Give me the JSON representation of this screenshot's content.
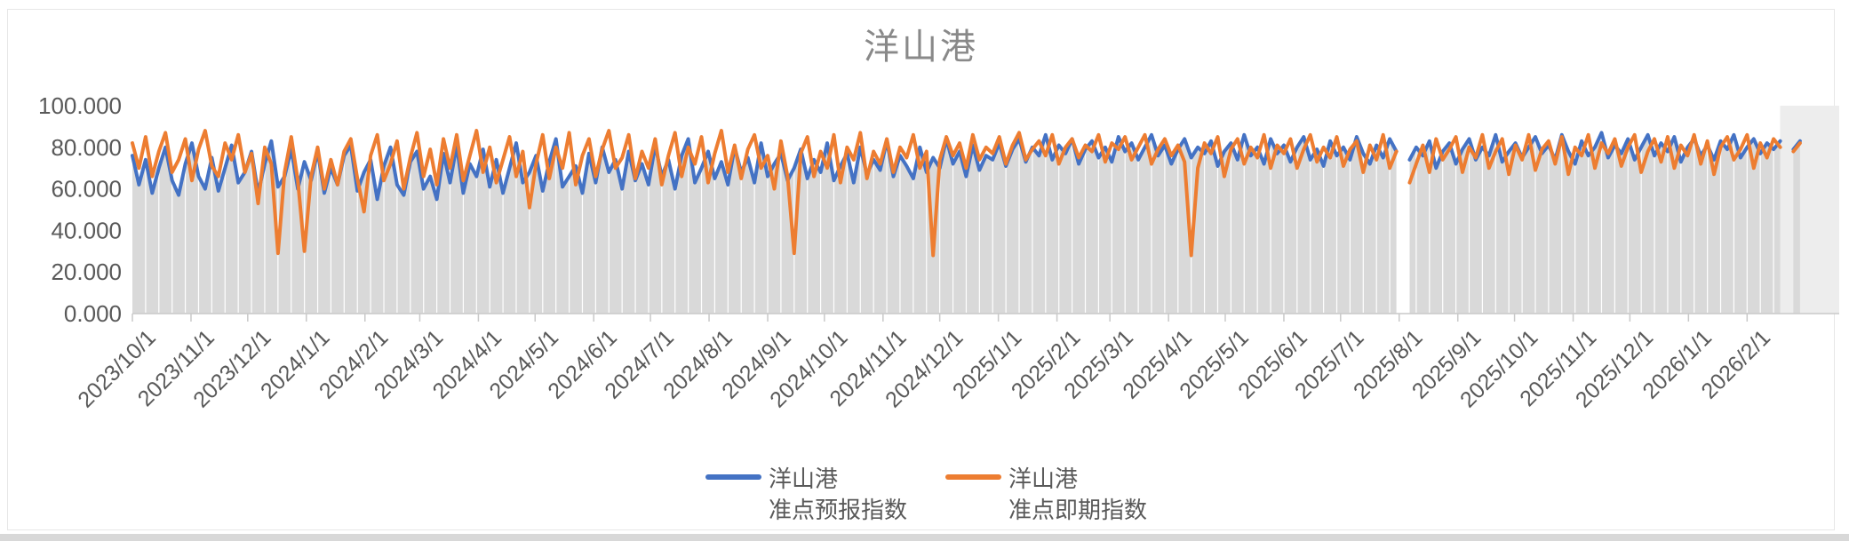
{
  "chart_data": {
    "type": "line",
    "title": "洋山港",
    "title_color": "#898989",
    "xlabel": "",
    "ylabel": "",
    "ylim": [
      0,
      100
    ],
    "y_tick_labels": [
      "0.000",
      "20.000",
      "40.000",
      "60.000",
      "80.000",
      "100.000"
    ],
    "x_start_date": "2023/10/1",
    "sample_interval_days": 3.5,
    "x_tick_labels": [
      "2023/10/1",
      "2023/11/1",
      "2023/12/1",
      "2024/1/1",
      "2024/2/1",
      "2024/3/1",
      "2024/4/1",
      "2024/5/1",
      "2024/6/1",
      "2024/7/1",
      "2024/8/1",
      "2024/9/1",
      "2024/10/1",
      "2024/11/1",
      "2024/12/1",
      "2025/1/1",
      "2025/2/1",
      "2025/3/1",
      "2025/4/1",
      "2025/5/1",
      "2025/6/1",
      "2025/7/1",
      "2025/8/1",
      "2025/9/1",
      "2025/10/1",
      "2025/11/1",
      "2025/12/1",
      "2026/1/1",
      "2026/2/1"
    ],
    "grid": "weekly vertical white gridlines over gray area fill",
    "legend_position": "bottom",
    "axis_label_color": "#595959",
    "axis_line_color": "#c9c9c9",
    "area_fill_color": "#d9d9d9",
    "future_strip_color": "#ededed",
    "series": [
      {
        "name": "洋山港准点预报指数",
        "legend_lines": [
          "洋山港",
          "准点预报指数"
        ],
        "color": "#4472C4",
        "area_under": true,
        "values": [
          76,
          62,
          74,
          58,
          70,
          80,
          64,
          57,
          72,
          82,
          66,
          60,
          75,
          59,
          70,
          81,
          63,
          68,
          78,
          58,
          72,
          83,
          61,
          66,
          79,
          60,
          73,
          64,
          78,
          58,
          70,
          62,
          76,
          81,
          59,
          68,
          74,
          55,
          71,
          80,
          62,
          57,
          73,
          78,
          60,
          66,
          55,
          77,
          63,
          81,
          58,
          72,
          66,
          79,
          61,
          74,
          58,
          70,
          82,
          63,
          68,
          76,
          59,
          73,
          84,
          61,
          66,
          71,
          58,
          77,
          63,
          80,
          68,
          74,
          60,
          78,
          64,
          72,
          62,
          81,
          66,
          74,
          60,
          76,
          84,
          63,
          70,
          78,
          65,
          73,
          62,
          80,
          68,
          75,
          63,
          82,
          66,
          72,
          77,
          64,
          70,
          79,
          65,
          74,
          68,
          82,
          64,
          71,
          77,
          63,
          80,
          67,
          74,
          69,
          83,
          66,
          76,
          71,
          65,
          80,
          68,
          75,
          70,
          84,
          72,
          78,
          66,
          81,
          69,
          76,
          74,
          82,
          71,
          79,
          84,
          73,
          80,
          76,
          86,
          74,
          81,
          77,
          84,
          72,
          79,
          83,
          75,
          80,
          73,
          85,
          78,
          82,
          74,
          80,
          86,
          76,
          81,
          72,
          79,
          84,
          75,
          80,
          77,
          83,
          71,
          78,
          82,
          74,
          86,
          76,
          80,
          72,
          84,
          77,
          81,
          73,
          80,
          85,
          74,
          79,
          71,
          83,
          76,
          80,
          74,
          85,
          77,
          72,
          81,
          75,
          84,
          78,
          null,
          74,
          80,
          76,
          83,
          70,
          78,
          82,
          72,
          79,
          84,
          74,
          80,
          76,
          86,
          73,
          78,
          82,
          75,
          80,
          85,
          77,
          81,
          74,
          86,
          78,
          72,
          83,
          76,
          80,
          87,
          75,
          81,
          77,
          84,
          74,
          80,
          86,
          76,
          82,
          78,
          85,
          73,
          80,
          84,
          76,
          81,
          74,
          83,
          79,
          86,
          75,
          80,
          84,
          77,
          82,
          79,
          83,
          null,
          79,
          83
        ]
      },
      {
        "name": "洋山港准点即期指数",
        "legend_lines": [
          "洋山港",
          "准点即期指数"
        ],
        "color": "#ED7D31",
        "area_under": false,
        "values": [
          82,
          70,
          85,
          66,
          78,
          87,
          68,
          74,
          84,
          64,
          79,
          88,
          71,
          66,
          82,
          74,
          86,
          68,
          77,
          53,
          80,
          72,
          29,
          68,
          85,
          64,
          30,
          66,
          80,
          60,
          74,
          62,
          78,
          84,
          65,
          49,
          76,
          86,
          64,
          72,
          83,
          60,
          75,
          87,
          66,
          79,
          62,
          84,
          70,
          86,
          64,
          76,
          88,
          68,
          80,
          63,
          74,
          85,
          66,
          78,
          51,
          72,
          86,
          65,
          80,
          70,
          87,
          62,
          76,
          84,
          66,
          79,
          88,
          70,
          75,
          86,
          65,
          78,
          70,
          84,
          62,
          76,
          87,
          66,
          80,
          72,
          85,
          63,
          77,
          88,
          68,
          81,
          65,
          79,
          86,
          70,
          76,
          60,
          83,
          66,
          29,
          77,
          85,
          66,
          78,
          70,
          86,
          63,
          80,
          74,
          87,
          65,
          78,
          72,
          84,
          68,
          80,
          75,
          86,
          70,
          78,
          28,
          74,
          85,
          76,
          82,
          70,
          86,
          74,
          80,
          77,
          85,
          72,
          81,
          87,
          74,
          79,
          83,
          76,
          86,
          72,
          80,
          84,
          75,
          81,
          78,
          86,
          73,
          82,
          79,
          85,
          74,
          80,
          86,
          72,
          79,
          84,
          76,
          81,
          73,
          28,
          70,
          82,
          77,
          85,
          66,
          79,
          84,
          72,
          80,
          75,
          86,
          70,
          81,
          77,
          84,
          70,
          79,
          86,
          73,
          80,
          75,
          85,
          71,
          79,
          83,
          68,
          81,
          74,
          86,
          70,
          78,
          null,
          63,
          72,
          81,
          68,
          84,
          74,
          79,
          85,
          68,
          80,
          75,
          86,
          70,
          78,
          84,
          67,
          81,
          74,
          86,
          69,
          79,
          83,
          72,
          85,
          67,
          80,
          76,
          86,
          70,
          82,
          77,
          84,
          71,
          80,
          86,
          68,
          78,
          84,
          73,
          85,
          70,
          81,
          76,
          86,
          72,
          83,
          67,
          80,
          85,
          74,
          79,
          86,
          70,
          82,
          75,
          84,
          80,
          null,
          78,
          82
        ]
      }
    ]
  },
  "window": {
    "bottom_strip_color": "#d8d8d8"
  }
}
